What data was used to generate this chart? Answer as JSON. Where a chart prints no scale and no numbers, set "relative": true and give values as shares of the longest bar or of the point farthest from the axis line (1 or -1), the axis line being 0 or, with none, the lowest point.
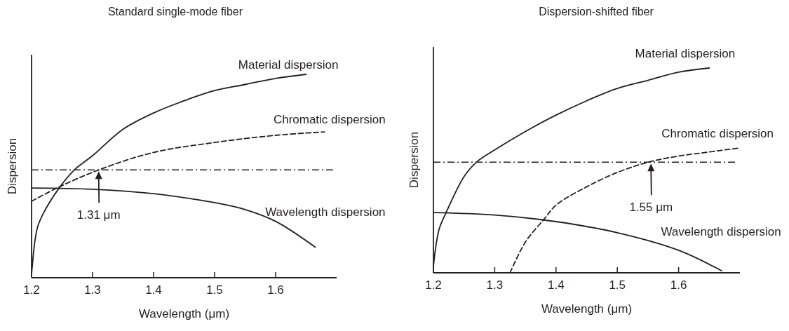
{
  "chart_data": [
    {
      "type": "line",
      "title": "Standard single-mode fiber",
      "xlabel": "Wavelength (μm)",
      "ylabel": "Dispersion",
      "relative": true,
      "xlim": [
        1.2,
        1.7
      ],
      "xticks": [
        1.2,
        1.3,
        1.4,
        1.5,
        1.6
      ],
      "grid": false,
      "legend": false,
      "marker": "none",
      "series": [
        {
          "name": "Material dispersion",
          "color": "#231f20",
          "line_style": "solid",
          "x": [
            1.2,
            1.201,
            1.205,
            1.21,
            1.22,
            1.245,
            1.27,
            1.3,
            1.35,
            1.4,
            1.45,
            1.5,
            1.55,
            1.6,
            1.65
          ],
          "values": [
            0.02,
            0.05,
            0.17,
            0.25,
            0.32,
            0.44,
            0.53,
            0.6,
            0.73,
            0.81,
            0.87,
            0.92,
            0.95,
            0.98,
            1.0
          ]
        },
        {
          "name": "Chromatic dispersion",
          "color": "#231f20",
          "line_style": "dashed",
          "x": [
            1.2,
            1.245,
            1.31,
            1.4,
            1.5,
            1.6,
            1.68
          ],
          "values": [
            0.376,
            0.446,
            0.53,
            0.616,
            0.665,
            0.7,
            0.717
          ]
        },
        {
          "name": "Wavelength dispersion",
          "color": "#231f20",
          "line_style": "solid",
          "x": [
            1.2,
            1.3,
            1.4,
            1.5,
            1.55,
            1.6,
            1.665
          ],
          "values": [
            0.441,
            0.435,
            0.413,
            0.369,
            0.335,
            0.277,
            0.15
          ]
        }
      ],
      "ref_lines": [
        {
          "axis": "y",
          "value": 0.53,
          "color": "#231f20",
          "line_style": "dashdot"
        }
      ],
      "annotations": [
        {
          "text": "1.31 μm",
          "x": 1.31,
          "y": 0.53
        }
      ]
    },
    {
      "type": "line",
      "title": "Dispersion-shifted fiber",
      "xlabel": "Wavelength (μm)",
      "ylabel": "Dispersion",
      "relative": true,
      "xlim": [
        1.2,
        1.7
      ],
      "xticks": [
        1.2,
        1.3,
        1.4,
        1.5,
        1.6
      ],
      "grid": false,
      "legend": false,
      "marker": "none",
      "series": [
        {
          "name": "Material dispersion",
          "color": "#231f20",
          "line_style": "solid",
          "x": [
            1.2,
            1.201,
            1.205,
            1.21,
            1.22,
            1.25,
            1.27,
            1.3,
            1.35,
            1.4,
            1.45,
            1.5,
            1.55,
            1.6,
            1.65
          ],
          "values": [
            0.03,
            0.06,
            0.15,
            0.22,
            0.29,
            0.47,
            0.54,
            0.6,
            0.69,
            0.77,
            0.84,
            0.9,
            0.94,
            0.98,
            1.0
          ]
        },
        {
          "name": "Chromatic dispersion",
          "color": "#231f20",
          "line_style": "dashed",
          "x": [
            1.325,
            1.35,
            1.38,
            1.4,
            1.45,
            1.5,
            1.55,
            1.6,
            1.65,
            1.7
          ],
          "values": [
            0,
            0.15,
            0.26,
            0.33,
            0.42,
            0.49,
            0.54,
            0.57,
            0.59,
            0.61
          ]
        },
        {
          "name": "Wavelength dispersion",
          "color": "#231f20",
          "line_style": "solid",
          "x": [
            1.2,
            1.3,
            1.4,
            1.5,
            1.6,
            1.67
          ],
          "values": [
            0.294,
            0.282,
            0.25,
            0.196,
            0.11,
            0.01
          ]
        }
      ],
      "ref_lines": [
        {
          "axis": "y",
          "value": 0.54,
          "color": "#231f20",
          "line_style": "dashdot"
        }
      ],
      "annotations": [
        {
          "text": "1.55 μm",
          "x": 1.555,
          "y": 0.54
        }
      ]
    }
  ]
}
